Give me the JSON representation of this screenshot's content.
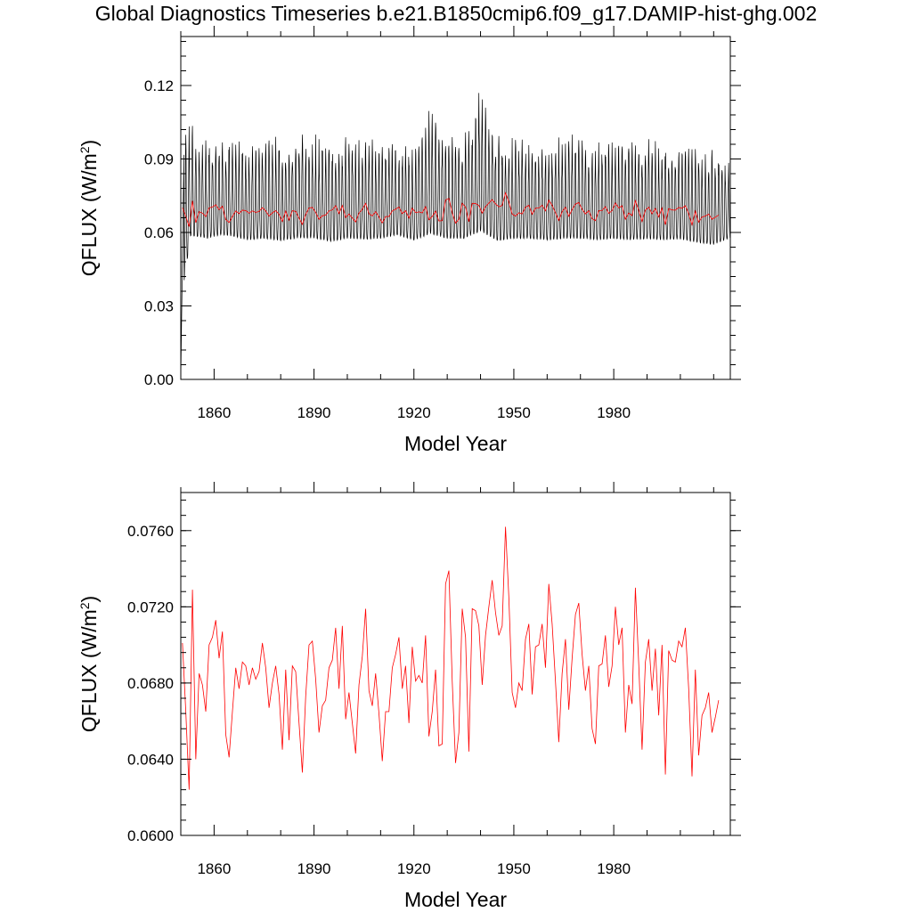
{
  "title": "Global Diagnostics Timeseries b.e21.B1850cmip6.f09_g17.DAMIP-hist-ghg.002",
  "colors": {
    "monthly": "#000000",
    "annual": "#ff0000",
    "axis": "#000000"
  },
  "chart_data": [
    {
      "type": "line",
      "panel": "top",
      "xlabel": "Model Year",
      "ylabel": "QFLUX (W/m",
      "ylabel_sup": "2",
      "ylabel_close": ")",
      "xlim": [
        1850,
        2015
      ],
      "ylim": [
        0,
        0.14
      ],
      "xticks": [
        1860,
        1890,
        1920,
        1950,
        1980
      ],
      "xtick_labels": [
        "1860",
        "1890",
        "1920",
        "1950",
        "1980"
      ],
      "yticks": [
        0,
        0.03,
        0.06,
        0.09,
        0.12
      ],
      "ytick_labels": [
        "0.00",
        "0.03",
        "0.06",
        "0.09",
        "0.12"
      ],
      "series": [
        {
          "style": "monthly",
          "envelope": {
            "x_years": [
              1850,
              1851,
              1853,
              1855,
              1858,
              1862,
              1866,
              1870,
              1875,
              1880,
              1885,
              1890,
              1895,
              1900,
              1905,
              1910,
              1915,
              1920,
              1925,
              1930,
              1935,
              1940,
              1945,
              1950,
              1955,
              1960,
              1965,
              1970,
              1975,
              1980,
              1985,
              1990,
              1995,
              2000,
              2005,
              2010,
              2015
            ],
            "max": [
              0.0,
              0.1,
              0.108,
              0.1,
              0.1,
              0.099,
              0.1,
              0.096,
              0.1,
              0.1,
              0.101,
              0.101,
              0.098,
              0.1,
              0.098,
              0.1,
              0.099,
              0.095,
              0.113,
              0.1,
              0.1,
              0.12,
              0.1,
              0.1,
              0.1,
              0.096,
              0.1,
              0.1,
              0.097,
              0.1,
              0.097,
              0.099,
              0.097,
              0.098,
              0.095,
              0.095,
              0.09
            ],
            "min": [
              0.0,
              0.03,
              0.05,
              0.051,
              0.05,
              0.052,
              0.051,
              0.05,
              0.05,
              0.049,
              0.05,
              0.05,
              0.049,
              0.05,
              0.05,
              0.05,
              0.052,
              0.05,
              0.05,
              0.05,
              0.05,
              0.05,
              0.049,
              0.05,
              0.05,
              0.05,
              0.05,
              0.05,
              0.05,
              0.05,
              0.05,
              0.05,
              0.05,
              0.05,
              0.049,
              0.048,
              0.052
            ]
          }
        },
        {
          "style": "annual",
          "x_start": 1850,
          "values": [
            0.0701,
            0.0665,
            0.0624,
            0.0729,
            0.064,
            0.0685,
            0.0679,
            0.0665,
            0.07,
            0.0704,
            0.0713,
            0.0693,
            0.0707,
            0.0653,
            0.0641,
            0.0665,
            0.0688,
            0.0677,
            0.0691,
            0.0689,
            0.0679,
            0.0688,
            0.0682,
            0.0686,
            0.0701,
            0.0688,
            0.0667,
            0.068,
            0.0689,
            0.0674,
            0.0645,
            0.0687,
            0.065,
            0.0689,
            0.0686,
            0.0659,
            0.0633,
            0.0673,
            0.07,
            0.0702,
            0.0682,
            0.0654,
            0.0668,
            0.0671,
            0.0688,
            0.0692,
            0.0709,
            0.0677,
            0.071,
            0.0661,
            0.0675,
            0.0659,
            0.0643,
            0.0679,
            0.0694,
            0.0719,
            0.0676,
            0.0668,
            0.0685,
            0.0664,
            0.0639,
            0.0665,
            0.0665,
            0.0688,
            0.0695,
            0.0704,
            0.0677,
            0.0689,
            0.0659,
            0.0699,
            0.0681,
            0.0684,
            0.068,
            0.0705,
            0.0652,
            0.0665,
            0.0687,
            0.0647,
            0.0648,
            0.0732,
            0.0739,
            0.0681,
            0.0638,
            0.0654,
            0.0719,
            0.0704,
            0.0644,
            0.0719,
            0.0718,
            0.071,
            0.0679,
            0.0705,
            0.072,
            0.0734,
            0.0717,
            0.0705,
            0.071,
            0.0762,
            0.0725,
            0.0675,
            0.0667,
            0.068,
            0.0676,
            0.0703,
            0.0711,
            0.0674,
            0.0699,
            0.07,
            0.0711,
            0.0688,
            0.0732,
            0.0711,
            0.0681,
            0.0649,
            0.0685,
            0.0703,
            0.0666,
            0.0693,
            0.0716,
            0.0722,
            0.0695,
            0.0676,
            0.0689,
            0.0656,
            0.0648,
            0.0689,
            0.069,
            0.0705,
            0.0678,
            0.0689,
            0.072,
            0.07,
            0.0709,
            0.0654,
            0.0679,
            0.0669,
            0.073,
            0.069,
            0.0645,
            0.0691,
            0.0703,
            0.0676,
            0.0698,
            0.0663,
            0.07,
            0.0632,
            0.0697,
            0.0692,
            0.0691,
            0.0702,
            0.0699,
            0.0709,
            0.0677,
            0.0631,
            0.0687,
            0.0642,
            0.0663,
            0.0667,
            0.0675,
            0.0654,
            0.0662,
            0.0671
          ]
        }
      ]
    },
    {
      "type": "line",
      "panel": "bottom",
      "xlabel": "Model Year",
      "ylabel": "QFLUX (W/m",
      "ylabel_sup": "2",
      "ylabel_close": ")",
      "xlim": [
        1850,
        2015
      ],
      "ylim": [
        0.06,
        0.078
      ],
      "xticks": [
        1860,
        1890,
        1920,
        1950,
        1980
      ],
      "xtick_labels": [
        "1860",
        "1890",
        "1920",
        "1950",
        "1980"
      ],
      "yticks": [
        0.06,
        0.064,
        0.068,
        0.072,
        0.076
      ],
      "ytick_labels": [
        "0.0600",
        "0.0640",
        "0.0680",
        "0.0720",
        "0.0760"
      ],
      "series": [
        {
          "style": "annual",
          "source": "same as top panel annual series"
        }
      ]
    }
  ]
}
